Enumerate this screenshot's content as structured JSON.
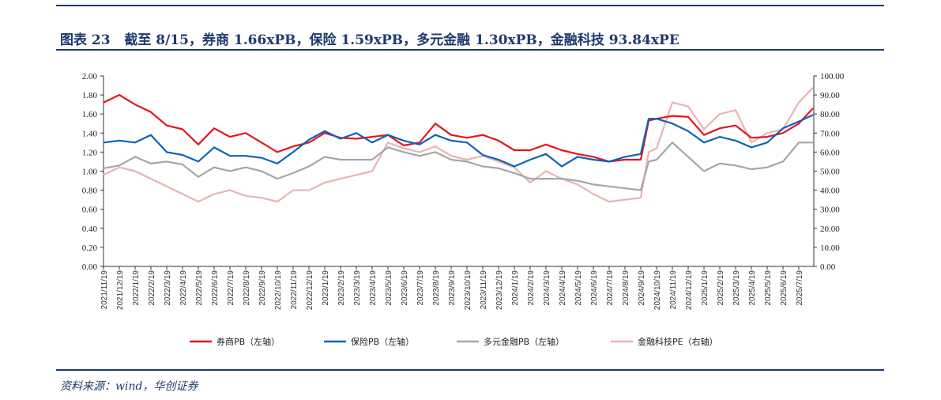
{
  "title": "图表 23   截至 8/15，券商 1.66xPB，保险 1.59xPB，多元金融 1.30xPB，金融科技 93.84xPE",
  "source": "资料来源：wind，华创证券",
  "chart_data": {
    "type": "line",
    "title": "截至 8/15，券商 1.66xPB，保险 1.59xPB，多元金融 1.30xPB，金融科技 93.84xPE",
    "x_tick_labels": [
      "2021/11/19",
      "2021/12/19",
      "2022/1/19",
      "2022/2/19",
      "2022/3/19",
      "2022/4/19",
      "2022/5/19",
      "2022/6/19",
      "2022/7/19",
      "2022/8/19",
      "2022/9/19",
      "2022/10/19",
      "2022/11/19",
      "2022/12/19",
      "2023/1/19",
      "2023/2/19",
      "2023/3/19",
      "2023/4/19",
      "2023/5/19",
      "2023/6/19",
      "2023/7/19",
      "2023/8/19",
      "2023/9/19",
      "2023/10/19",
      "2023/11/19",
      "2023/12/19",
      "2024/1/19",
      "2024/2/19",
      "2024/3/19",
      "2024/4/19",
      "2024/5/19",
      "2024/6/19",
      "2024/7/19",
      "2024/8/19",
      "2024/9/19",
      "2024/10/19",
      "2024/11/19",
      "2024/12/19",
      "2025/1/19",
      "2025/2/19",
      "2025/3/19",
      "2025/4/19",
      "2025/5/19",
      "2025/6/19",
      "2025/7/19"
    ],
    "x": [
      0,
      1,
      2,
      3,
      4,
      5,
      6,
      7,
      8,
      9,
      10,
      11,
      12,
      13,
      14,
      15,
      16,
      17,
      18,
      19,
      20,
      21,
      22,
      23,
      24,
      25,
      26,
      27,
      28,
      29,
      30,
      31,
      32,
      33,
      34,
      34.5,
      35,
      36,
      37,
      38,
      39,
      40,
      41,
      42,
      43,
      44,
      44.9
    ],
    "y_left": {
      "ylim": [
        0,
        2
      ],
      "ticks": [
        "0.00",
        "0.20",
        "0.40",
        "0.60",
        "0.80",
        "1.00",
        "1.20",
        "1.40",
        "1.60",
        "1.80",
        "2.00"
      ]
    },
    "y_right": {
      "ylim": [
        0,
        100
      ],
      "ticks": [
        "0.00",
        "10.00",
        "20.00",
        "30.00",
        "40.00",
        "50.00",
        "60.00",
        "70.00",
        "80.00",
        "90.00",
        "100.00"
      ]
    },
    "series": [
      {
        "name": "券商PB（左轴）",
        "axis": "left",
        "color": "#e8141e",
        "values": [
          1.72,
          1.8,
          1.7,
          1.62,
          1.48,
          1.44,
          1.28,
          1.45,
          1.36,
          1.4,
          1.3,
          1.2,
          1.26,
          1.3,
          1.4,
          1.35,
          1.34,
          1.36,
          1.38,
          1.27,
          1.3,
          1.5,
          1.38,
          1.35,
          1.38,
          1.32,
          1.22,
          1.22,
          1.28,
          1.22,
          1.18,
          1.15,
          1.1,
          1.12,
          1.12,
          1.53,
          1.55,
          1.58,
          1.57,
          1.38,
          1.45,
          1.48,
          1.35,
          1.36,
          1.4,
          1.5,
          1.66
        ]
      },
      {
        "name": "保险PB（左轴）",
        "axis": "left",
        "color": "#0b64b8",
        "values": [
          1.3,
          1.32,
          1.3,
          1.38,
          1.2,
          1.17,
          1.1,
          1.25,
          1.16,
          1.16,
          1.14,
          1.08,
          1.2,
          1.33,
          1.42,
          1.34,
          1.4,
          1.3,
          1.38,
          1.32,
          1.28,
          1.38,
          1.32,
          1.3,
          1.17,
          1.12,
          1.05,
          1.12,
          1.18,
          1.05,
          1.15,
          1.12,
          1.1,
          1.15,
          1.18,
          1.55,
          1.55,
          1.5,
          1.42,
          1.3,
          1.36,
          1.32,
          1.25,
          1.3,
          1.45,
          1.52,
          1.59
        ]
      },
      {
        "name": "多元金融PB（左轴）",
        "axis": "left",
        "color": "#a6a6a6",
        "values": [
          1.03,
          1.06,
          1.15,
          1.08,
          1.1,
          1.07,
          0.94,
          1.04,
          1.0,
          1.04,
          1.0,
          0.92,
          0.98,
          1.05,
          1.15,
          1.12,
          1.12,
          1.12,
          1.25,
          1.2,
          1.16,
          1.2,
          1.12,
          1.1,
          1.05,
          1.03,
          0.98,
          0.92,
          0.92,
          0.92,
          0.9,
          0.86,
          0.84,
          0.82,
          0.8,
          1.1,
          1.12,
          1.3,
          1.15,
          1.0,
          1.08,
          1.06,
          1.02,
          1.04,
          1.1,
          1.3,
          1.3
        ]
      },
      {
        "name": "金融科技PE（右轴）",
        "axis": "right",
        "color": "#e8b4b4",
        "values": [
          48,
          52,
          50,
          46,
          42,
          38,
          34,
          38,
          40,
          37,
          36,
          34,
          40,
          40,
          44,
          46,
          48,
          50,
          65,
          62,
          60,
          63,
          58,
          56,
          58,
          55,
          52,
          44,
          50,
          46,
          43,
          38,
          34,
          35,
          36,
          60,
          62,
          86,
          84,
          72,
          80,
          82,
          65,
          70,
          72,
          86,
          93.84
        ]
      }
    ],
    "legend": [
      "券商PB（左轴）",
      "保险PB（左轴）",
      "多元金融PB（左轴）",
      "金融科技PE（右轴）"
    ],
    "legend_position": "bottom",
    "grid": false
  }
}
